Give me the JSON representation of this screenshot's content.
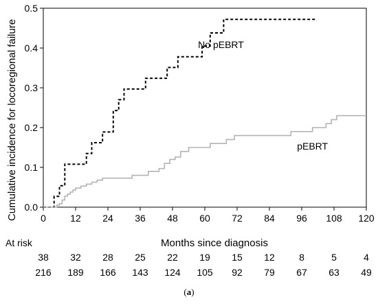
{
  "chart_data": {
    "type": "line",
    "xlabel": "Months since diagnosis",
    "ylabel": "Cumulative incidence for locoregional failure",
    "xlim": [
      0,
      120
    ],
    "ylim": [
      0,
      0.5
    ],
    "xticks": [
      0,
      12,
      24,
      36,
      48,
      60,
      72,
      84,
      96,
      108,
      120
    ],
    "xtick_labels": [
      "0",
      "12",
      "24",
      "36",
      "48",
      "60",
      "72",
      "84",
      "96",
      "108",
      "120"
    ],
    "yticks": [
      0,
      0.1,
      0.2,
      0.3,
      0.4,
      0.5
    ],
    "ytick_labels": [
      "0.0",
      "0.1",
      "0.2",
      "0.3",
      "0.4",
      "0.5"
    ],
    "grid": false,
    "series": [
      {
        "name": "No pEBRT",
        "color": "#000000",
        "line_style": "dashed",
        "step": true,
        "x": [
          0,
          4,
          4,
          6,
          6,
          8,
          8,
          16,
          16,
          18,
          18,
          22,
          22,
          26,
          26,
          28,
          28,
          30,
          30,
          38,
          38,
          46,
          46,
          50,
          50,
          59,
          59,
          62,
          62,
          67,
          67,
          87,
          87,
          101
        ],
        "y": [
          0,
          0,
          0.027,
          0.027,
          0.054,
          0.054,
          0.108,
          0.108,
          0.135,
          0.135,
          0.162,
          0.162,
          0.189,
          0.189,
          0.243,
          0.243,
          0.27,
          0.27,
          0.297,
          0.297,
          0.324,
          0.324,
          0.351,
          0.351,
          0.378,
          0.378,
          0.405,
          0.405,
          0.438,
          0.438,
          0.472,
          0.472,
          0.472,
          0.472
        ]
      },
      {
        "name": "pEBRT",
        "color": "#b3b3b3",
        "line_style": "solid",
        "step": true,
        "x": [
          0,
          5,
          5,
          6,
          6,
          7,
          7,
          8,
          8,
          9,
          9,
          10,
          10,
          11,
          11,
          12,
          12,
          14,
          14,
          16,
          16,
          18,
          18,
          20,
          20,
          22,
          22,
          33,
          33,
          39,
          39,
          43,
          43,
          45,
          45,
          47,
          47,
          49,
          49,
          51,
          51,
          54,
          54,
          62,
          62,
          68,
          68,
          71,
          71,
          92,
          92,
          100,
          100,
          105,
          105,
          107,
          107,
          109,
          109,
          120
        ],
        "y": [
          0,
          0,
          0.005,
          0.005,
          0.009,
          0.009,
          0.018,
          0.018,
          0.028,
          0.028,
          0.033,
          0.033,
          0.038,
          0.038,
          0.043,
          0.043,
          0.048,
          0.048,
          0.053,
          0.053,
          0.058,
          0.058,
          0.063,
          0.063,
          0.068,
          0.068,
          0.073,
          0.073,
          0.08,
          0.08,
          0.09,
          0.09,
          0.097,
          0.097,
          0.11,
          0.11,
          0.12,
          0.12,
          0.126,
          0.126,
          0.14,
          0.14,
          0.15,
          0.15,
          0.16,
          0.16,
          0.17,
          0.17,
          0.18,
          0.18,
          0.19,
          0.19,
          0.2,
          0.2,
          0.21,
          0.21,
          0.22,
          0.22,
          0.23,
          0.23
        ]
      }
    ],
    "annotations": [
      {
        "text": "No pEBRT",
        "x": 66,
        "y": 0.4,
        "color": "#000000"
      },
      {
        "text": "pEBRT",
        "x": 100,
        "y": 0.145,
        "color": "#a0a0a0"
      }
    ],
    "at_risk": {
      "label": "At risk",
      "x": [
        0,
        12,
        24,
        36,
        48,
        60,
        72,
        84,
        96,
        108,
        120
      ],
      "rows": [
        {
          "color": "#000000",
          "values": [
            "38",
            "32",
            "28",
            "25",
            "22",
            "19",
            "15",
            "12",
            "8",
            "5",
            "4"
          ]
        },
        {
          "color": "#7a7a7a",
          "values": [
            "216",
            "189",
            "166",
            "143",
            "124",
            "105",
            "92",
            "79",
            "67",
            "63",
            "49"
          ]
        }
      ]
    }
  },
  "caption": {
    "open": "(",
    "label": "a",
    "close": ")"
  }
}
